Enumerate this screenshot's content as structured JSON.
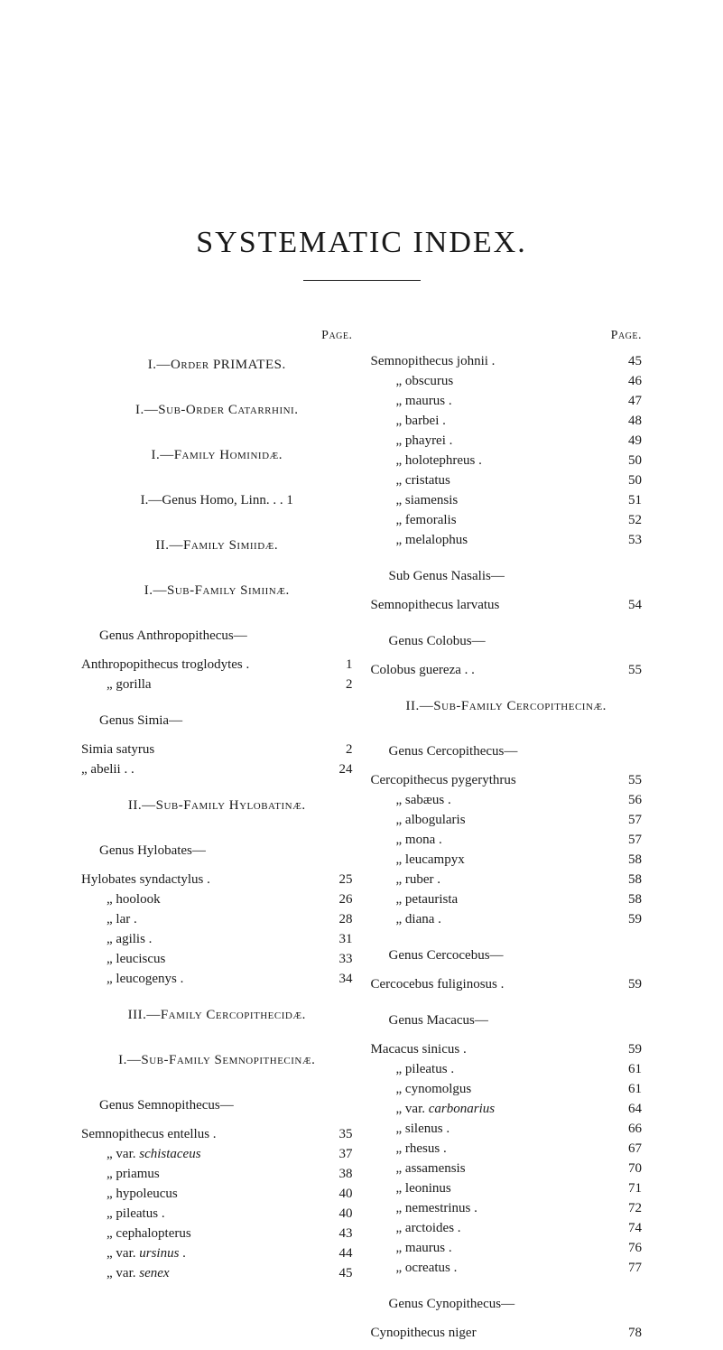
{
  "title": "SYSTEMATIC INDEX.",
  "pageLabel": "Page.",
  "dittoMark": "„",
  "leaders_dots": ". . .",
  "left": {
    "sections": [
      {
        "heading": "I.—Order PRIMATES.",
        "headingClass": "heading smallcaps",
        "entries": []
      },
      {
        "heading": "I.—Sub-Order Catarrhini.",
        "headingClass": "heading smallcaps",
        "entries": []
      },
      {
        "heading": "I.—Family Hominidæ.",
        "headingClass": "heading smallcaps",
        "entries": []
      },
      {
        "heading": "I.—Genus Homo, Linn.   .   .   1",
        "headingClass": "heading",
        "entries": []
      },
      {
        "heading": "II.—Family Simiidæ.",
        "headingClass": "heading smallcaps",
        "entries": []
      },
      {
        "heading": "I.—Sub-Family Simiinæ.",
        "headingClass": "heading smallcaps",
        "entries": []
      },
      {
        "heading": "Genus Anthropopithecus—",
        "headingClass": "heading indent-left",
        "entries": [
          {
            "indent": "sm-indent",
            "label": "Anthropopithecus troglodytes .",
            "page": "1"
          },
          {
            "indent": "md-indent",
            "label": "„              gorilla",
            "page": "2"
          }
        ]
      },
      {
        "heading": "Genus Simia—",
        "headingClass": "heading indent-left",
        "entries": [
          {
            "indent": "sm-indent",
            "label": "Simia satyrus",
            "page": "2"
          },
          {
            "indent": "sm-indent",
            "label": "„   abelii .       .",
            "page": "24"
          }
        ]
      },
      {
        "heading": "II.—Sub-Family Hylobatinæ.",
        "headingClass": "heading smallcaps",
        "entries": []
      },
      {
        "heading": "Genus Hylobates—",
        "headingClass": "heading indent-left",
        "entries": [
          {
            "indent": "sm-indent",
            "label": "Hylobates syndactylus .",
            "page": "25"
          },
          {
            "indent": "md-indent",
            "label": "„   hoolook",
            "page": "26"
          },
          {
            "indent": "md-indent",
            "label": "„   lar    .",
            "page": "28"
          },
          {
            "indent": "md-indent",
            "label": "„   agilis .",
            "page": "31"
          },
          {
            "indent": "md-indent",
            "label": "„   leuciscus",
            "page": "33"
          },
          {
            "indent": "md-indent",
            "label": "„   leucogenys .",
            "page": "34"
          }
        ]
      },
      {
        "heading": "III.—Family Cercopithecidæ.",
        "headingClass": "heading smallcaps",
        "entries": []
      },
      {
        "heading": "I.—Sub-Family Semnopithecinæ.",
        "headingClass": "heading smallcaps",
        "entries": []
      },
      {
        "heading": "Genus Semnopithecus—",
        "headingClass": "heading indent-left",
        "entries": [
          {
            "indent": "sm-indent",
            "label": "Semnopithecus entellus .",
            "page": "35"
          },
          {
            "indent": "md-indent",
            "label": "„   var. <span class=\"italic\">schistaceus</span>",
            "page": "37"
          },
          {
            "indent": "md-indent",
            "label": "„   priamus",
            "page": "38"
          },
          {
            "indent": "md-indent",
            "label": "„   hypoleucus",
            "page": "40"
          },
          {
            "indent": "md-indent",
            "label": "„   pileatus .",
            "page": "40"
          },
          {
            "indent": "md-indent",
            "label": "„   cephalopterus",
            "page": "43"
          },
          {
            "indent": "md-indent",
            "label": "„   var. <span class=\"italic\">ursinus</span> .",
            "page": "44"
          },
          {
            "indent": "md-indent",
            "label": "„   var. <span class=\"italic\">senex</span>",
            "page": "45"
          }
        ]
      }
    ]
  },
  "right": {
    "sections": [
      {
        "heading": null,
        "entries": [
          {
            "indent": "sm-indent",
            "label": "Semnopithecus johnii .",
            "page": "45"
          },
          {
            "indent": "md-indent",
            "label": "„   obscurus",
            "page": "46"
          },
          {
            "indent": "md-indent",
            "label": "„   maurus .",
            "page": "47"
          },
          {
            "indent": "md-indent",
            "label": "„   barbei .",
            "page": "48"
          },
          {
            "indent": "md-indent",
            "label": "„   phayrei .",
            "page": "49"
          },
          {
            "indent": "md-indent",
            "label": "„   holotephreus .",
            "page": "50"
          },
          {
            "indent": "md-indent",
            "label": "„   cristatus",
            "page": "50"
          },
          {
            "indent": "md-indent",
            "label": "„   siamensis",
            "page": "51"
          },
          {
            "indent": "md-indent",
            "label": "„   femoralis",
            "page": "52"
          },
          {
            "indent": "md-indent",
            "label": "„   melalophus",
            "page": "53"
          }
        ]
      },
      {
        "heading": "Sub Genus Nasalis—",
        "headingClass": "heading indent-left",
        "entries": [
          {
            "indent": "sm-indent",
            "label": "Semnopithecus larvatus",
            "page": "54"
          }
        ]
      },
      {
        "heading": "Genus Colobus—",
        "headingClass": "heading indent-left",
        "entries": [
          {
            "indent": "sm-indent",
            "label": "Colobus guereza   .   .",
            "page": "55"
          }
        ]
      },
      {
        "heading": "II.—Sub-Family Cercopithecinæ.",
        "headingClass": "heading smallcaps",
        "entries": []
      },
      {
        "heading": "Genus Cercopithecus—",
        "headingClass": "heading indent-left",
        "entries": [
          {
            "indent": "sm-indent",
            "label": "Cercopithecus pygerythrus",
            "page": "55"
          },
          {
            "indent": "md-indent",
            "label": "„   sabæus .",
            "page": "56"
          },
          {
            "indent": "md-indent",
            "label": "„   albogularis",
            "page": "57"
          },
          {
            "indent": "md-indent",
            "label": "„   mona   .",
            "page": "57"
          },
          {
            "indent": "md-indent",
            "label": "„   leucampyx",
            "page": "58"
          },
          {
            "indent": "md-indent",
            "label": "„   ruber   .",
            "page": "58"
          },
          {
            "indent": "md-indent",
            "label": "„   petaurista",
            "page": "58"
          },
          {
            "indent": "md-indent",
            "label": "„   diana   .",
            "page": "59"
          }
        ]
      },
      {
        "heading": "Genus Cercocebus—",
        "headingClass": "heading indent-left",
        "entries": [
          {
            "indent": "sm-indent",
            "label": "Cercocebus fuliginosus .",
            "page": "59"
          }
        ]
      },
      {
        "heading": "Genus Macacus—",
        "headingClass": "heading indent-left",
        "entries": [
          {
            "indent": "sm-indent",
            "label": "Macacus sinicus   .",
            "page": "59"
          },
          {
            "indent": "md-indent",
            "label": "„   pileatus .",
            "page": "61"
          },
          {
            "indent": "md-indent",
            "label": "„   cynomolgus",
            "page": "61"
          },
          {
            "indent": "md-indent",
            "label": "„   var. <span class=\"italic\">carbonarius</span>",
            "page": "64"
          },
          {
            "indent": "md-indent",
            "label": "„   silenus .",
            "page": "66"
          },
          {
            "indent": "md-indent",
            "label": "„   rhesus .",
            "page": "67"
          },
          {
            "indent": "md-indent",
            "label": "„   assamensis",
            "page": "70"
          },
          {
            "indent": "md-indent",
            "label": "„   leoninus",
            "page": "71"
          },
          {
            "indent": "md-indent",
            "label": "„   nemestrinus .",
            "page": "72"
          },
          {
            "indent": "md-indent",
            "label": "„   arctoides .",
            "page": "74"
          },
          {
            "indent": "md-indent",
            "label": "„   maurus .",
            "page": "76"
          },
          {
            "indent": "md-indent",
            "label": "„   ocreatus .",
            "page": "77"
          }
        ]
      },
      {
        "heading": "Genus Cynopithecus—",
        "headingClass": "heading indent-left",
        "entries": [
          {
            "indent": "sm-indent",
            "label": "Cynopithecus niger",
            "page": "78"
          }
        ]
      }
    ]
  }
}
